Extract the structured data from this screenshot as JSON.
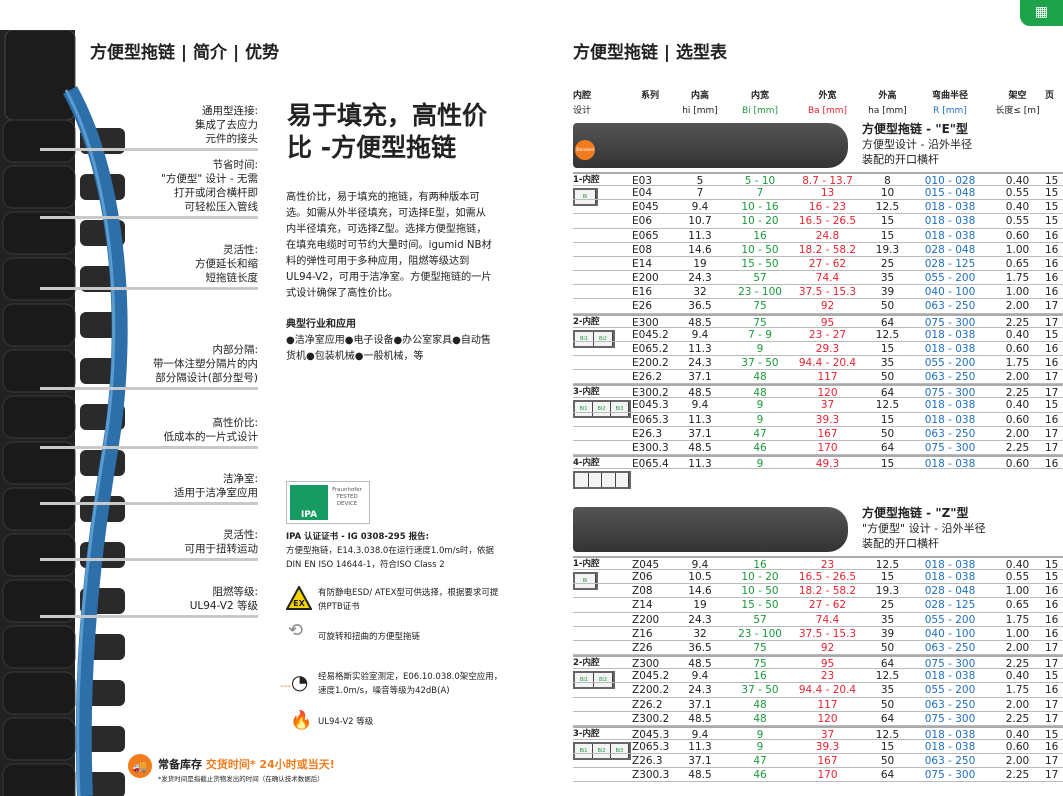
{
  "left": {
    "title": "方便型拖链 | 简介 | 优势",
    "callouts": [
      {
        "lines": [
          "通用型连接:",
          "集成了去应力",
          "元件的接头"
        ]
      },
      {
        "lines": [
          "节省时间:",
          "\"方便型\" 设计 - 无需",
          "打开或闭合横杆即",
          "可轻松压入管线"
        ]
      },
      {
        "lines": [
          "灵活性:",
          "方便延长和缩",
          "短拖链长度"
        ]
      },
      {
        "lines": [
          "内部分隔:",
          "带一体注塑分隔片的内",
          "部分隔设计(部分型号)"
        ]
      },
      {
        "lines": [
          "高性价比:",
          "低成本的一片式设计"
        ]
      },
      {
        "lines": [
          "洁净室:",
          "适用于洁净室应用"
        ]
      },
      {
        "lines": [
          "灵活性:",
          "可用于扭转运动"
        ]
      },
      {
        "lines": [
          "阻燃等级:",
          "UL94-V2 等级"
        ]
      }
    ],
    "headline": "易于填充，高性价比 -方便型拖链",
    "body": "高性价比，易于填充的拖链，有两种版本可选。如需从外半径填充，可选择E型，如需从内半径填充，可选择Z型。选择方便型拖链，在填充电缆时可节约大量时间。igumid NB材料的弹性可用于多种应用，阻燃等级达到UL94-V2，可用于洁净室。方便型拖链的一片式设计确保了高性价比。",
    "apps_title": "典型行业和应用",
    "apps": "●洁净室应用●电子设备●办公室家具●自动售货机●包装机械●一般机械，等",
    "ipa_logo": {
      "left": "IPA",
      "right": [
        "Fraunhofer",
        "TESTED",
        "DEVICE"
      ]
    },
    "ipa_title": "IPA 认证证书 - IG 0308-295 报告:",
    "ipa_text": "方便型拖链，E14.3.038.0在运行速度1.0m/s时，依据DIN EN ISO 14644-1，符合ISO Class 2",
    "ex_label": "EX",
    "features": [
      {
        "icon": "ex-warning-icon",
        "text": "有防静电ESD/ ATEX型可供选择，根据要求可提供PTB证书"
      },
      {
        "icon": "twist-icon",
        "text": "可旋转和扭曲的方便型拖链"
      },
      {
        "icon": "ear-noise-icon",
        "text": "经易格斯实验室测定，E06.10.038.0架空应用，速度1.0m/s，噪音等级为42dB(A)"
      },
      {
        "icon": "flame-icon",
        "text": "UL94-V2 等级"
      }
    ],
    "stock": {
      "label": "常备库存",
      "highlight": "交货时间* 24小时或当天!",
      "note": "*发货时间是指截止货物发出的时间（在确认技术数据后）"
    }
  },
  "right": {
    "title": "方便型拖链 | 选型表",
    "headers": [
      [
        "内腔",
        "设计"
      ],
      [
        "系列",
        ""
      ],
      [
        "内高",
        "hi [mm]"
      ],
      [
        "内宽",
        "Bi [mm]"
      ],
      [
        "外宽",
        "Ba [mm]"
      ],
      [
        "外高",
        "ha [mm]"
      ],
      [
        "弯曲半径",
        "R [mm]"
      ],
      [
        "架空",
        "长度≤ [m]"
      ],
      [
        "页",
        ""
      ]
    ],
    "standard_badge": "Standard",
    "sections": [
      {
        "title": "方便型拖链 - \"E\"型",
        "sub": [
          "方便型设计 - 沿外半径",
          "装配的开口横杆"
        ],
        "groups": [
          {
            "label": "1-内腔",
            "cav": [
              "Bi"
            ],
            "rows": [
              [
                "E03",
                "5",
                "5 - 10",
                "8.7 - 13.7",
                "8",
                "010 - 028",
                "0.40",
                "15"
              ],
              [
                "E04",
                "7",
                "7",
                "13",
                "10",
                "015 - 048",
                "0.55",
                "15"
              ],
              [
                "E045",
                "9.4",
                "10 - 16",
                "16 - 23",
                "12.5",
                "018 - 038",
                "0.40",
                "15"
              ],
              [
                "E06",
                "10.7",
                "10 - 20",
                "16.5 - 26.5",
                "15",
                "018 - 038",
                "0.55",
                "15"
              ],
              [
                "E065",
                "11.3",
                "16",
                "24.8",
                "15",
                "018 - 038",
                "0.60",
                "16"
              ],
              [
                "E08",
                "14.6",
                "10 - 50",
                "18.2 - 58.2",
                "19.3",
                "028 - 048",
                "1.00",
                "16"
              ],
              [
                "E14",
                "19",
                "15 - 50",
                "27 - 62",
                "25",
                "028 - 125",
                "0.65",
                "16"
              ],
              [
                "E200",
                "24.3",
                "57",
                "74.4",
                "35",
                "055 - 200",
                "1.75",
                "16"
              ],
              [
                "E16",
                "32",
                "23 - 100",
                "37.5 - 15.3",
                "39",
                "040 - 100",
                "1.00",
                "16"
              ],
              [
                "E26",
                "36.5",
                "75",
                "92",
                "50",
                "063 - 250",
                "2.00",
                "17"
              ]
            ]
          },
          {
            "label": "2-内腔",
            "cav": [
              "Bi1",
              "Bi2"
            ],
            "rows": [
              [
                "E300",
                "48.5",
                "75",
                "95",
                "64",
                "075 - 300",
                "2.25",
                "17"
              ],
              [
                "E045.2",
                "9.4",
                "7 - 9",
                "23 - 27",
                "12.5",
                "018 - 038",
                "0.40",
                "15"
              ],
              [
                "E065.2",
                "11.3",
                "9",
                "29.3",
                "15",
                "018 - 038",
                "0.60",
                "16"
              ],
              [
                "E200.2",
                "24.3",
                "37 - 50",
                "94.4 - 20.4",
                "35",
                "055 - 200",
                "1.75",
                "16"
              ],
              [
                "E26.2",
                "37.1",
                "48",
                "117",
                "50",
                "063 - 250",
                "2.00",
                "17"
              ]
            ]
          },
          {
            "label": "3-内腔",
            "cav": [
              "Bi1",
              "Bi2",
              "Bi3"
            ],
            "rows": [
              [
                "E300.2",
                "48.5",
                "48",
                "120",
                "64",
                "075 - 300",
                "2.25",
                "17"
              ],
              [
                "E045.3",
                "9.4",
                "9",
                "37",
                "12.5",
                "018 - 038",
                "0.40",
                "15"
              ],
              [
                "E065.3",
                "11.3",
                "9",
                "39.3",
                "15",
                "018 - 038",
                "0.60",
                "16"
              ],
              [
                "E26.3",
                "37.1",
                "47",
                "167",
                "50",
                "063 - 250",
                "2.00",
                "17"
              ],
              [
                "E300.3",
                "48.5",
                "46",
                "170",
                "64",
                "075 - 300",
                "2.25",
                "17"
              ]
            ]
          },
          {
            "label": "4-内腔",
            "cav": [
              "",
              "",
              "",
              ""
            ],
            "rows": [
              [
                "E065.4",
                "11.3",
                "9",
                "49.3",
                "15",
                "018 - 038",
                "0.60",
                "16"
              ]
            ]
          }
        ]
      },
      {
        "title": "方便型拖链 - \"Z\"型",
        "sub": [
          "\"方便型\" 设计 - 沿外半径",
          "装配的开口横杆"
        ],
        "groups": [
          {
            "label": "1-内腔",
            "cav": [
              "Bi"
            ],
            "rows": [
              [
                "Z045",
                "9.4",
                "16",
                "23",
                "12.5",
                "018 - 038",
                "0.40",
                "15"
              ],
              [
                "Z06",
                "10.5",
                "10 - 20",
                "16.5 - 26.5",
                "15",
                "018 - 038",
                "0.55",
                "15"
              ],
              [
                "Z08",
                "14.6",
                "10 - 50",
                "18.2 - 58.2",
                "19.3",
                "028 - 048",
                "1.00",
                "16"
              ],
              [
                "Z14",
                "19",
                "15 - 50",
                "27 - 62",
                "25",
                "028 - 125",
                "0.65",
                "16"
              ],
              [
                "Z200",
                "24.3",
                "57",
                "74.4",
                "35",
                "055 - 200",
                "1.75",
                "16"
              ],
              [
                "Z16",
                "32",
                "23 - 100",
                "37.5 - 15.3",
                "39",
                "040 - 100",
                "1.00",
                "16"
              ],
              [
                "Z26",
                "36.5",
                "75",
                "92",
                "50",
                "063 - 250",
                "2.00",
                "17"
              ]
            ]
          },
          {
            "label": "2-内腔",
            "cav": [
              "Bi1",
              "Bi2"
            ],
            "rows": [
              [
                "Z300",
                "48.5",
                "75",
                "95",
                "64",
                "075 - 300",
                "2.25",
                "17"
              ],
              [
                "Z045.2",
                "9.4",
                "16",
                "23",
                "12.5",
                "018 - 038",
                "0.40",
                "15"
              ],
              [
                "Z200.2",
                "24.3",
                "37 - 50",
                "94.4 - 20.4",
                "35",
                "055 - 200",
                "1.75",
                "16"
              ],
              [
                "Z26.2",
                "37.1",
                "48",
                "117",
                "50",
                "063 - 250",
                "2.00",
                "17"
              ],
              [
                "Z300.2",
                "48.5",
                "48",
                "120",
                "64",
                "075 - 300",
                "2.25",
                "17"
              ]
            ]
          },
          {
            "label": "3-内腔",
            "cav": [
              "Bi1",
              "Bi2",
              "Bi3"
            ],
            "rows": [
              [
                "Z045.3",
                "9.4",
                "9",
                "37",
                "12.5",
                "018 - 038",
                "0.40",
                "15"
              ],
              [
                "Z065.3",
                "11.3",
                "9",
                "39.3",
                "15",
                "018 - 038",
                "0.60",
                "16"
              ],
              [
                "Z26.3",
                "37.1",
                "47",
                "167",
                "50",
                "063 - 250",
                "2.00",
                "17"
              ],
              [
                "Z300.3",
                "48.5",
                "46",
                "170",
                "64",
                "075 - 300",
                "2.25",
                "17"
              ]
            ]
          }
        ]
      }
    ],
    "colors": {
      "inner_width": "#1a9a3a",
      "outer_width": "#e8232f",
      "radius": "#1f6fc0",
      "accent": "#f07c1e"
    }
  }
}
